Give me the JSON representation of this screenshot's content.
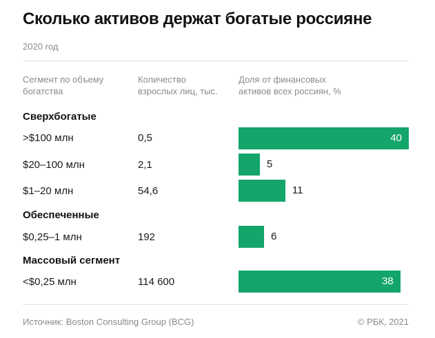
{
  "chart_data": {
    "type": "bar",
    "title": "Сколько активов держат богатые россияне",
    "subtitle": "2020 год",
    "columns": [
      [
        "Сегмент по объему",
        "богатства"
      ],
      [
        "Количество",
        "взрослых лиц, тыс."
      ],
      [
        "Доля от финансовых",
        "активов всех россиян, %"
      ]
    ],
    "groups": [
      {
        "name": "Сверхбогатые",
        "rows": [
          {
            "segment": ">$100 млн",
            "count": "0,5",
            "share": 40
          },
          {
            "segment": "$20–100 млн",
            "count": "2,1",
            "share": 5
          },
          {
            "segment": "$1–20 млн",
            "count": "54,6",
            "share": 11
          }
        ]
      },
      {
        "name": "Обеспеченные",
        "rows": [
          {
            "segment": "$0,25–1 млн",
            "count": "192",
            "share": 6
          }
        ]
      },
      {
        "name": "Массовый сегмент",
        "rows": [
          {
            "segment": "<$0,25 млн",
            "count": "114 600",
            "share": 38
          }
        ]
      }
    ],
    "xlim": [
      0,
      40
    ],
    "bar_color": "#14a56a",
    "source": "Источник: Boston Consulting Group (BCG)",
    "credit": "© РБК, 2021"
  }
}
